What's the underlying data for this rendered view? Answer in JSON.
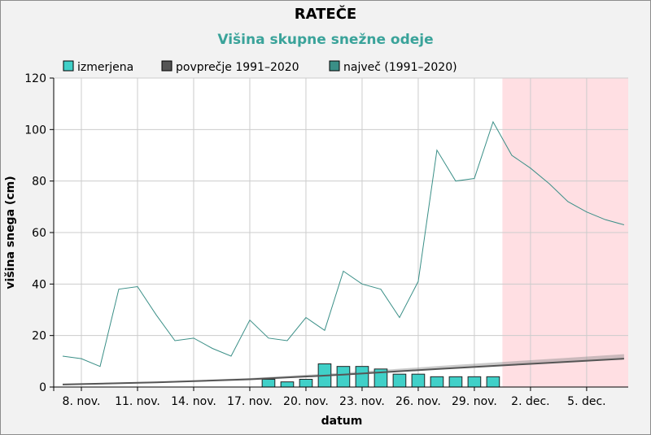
{
  "chart_data": {
    "type": "bar+line",
    "title": "RATEČE",
    "subtitle": "Višina skupne snežne odeje",
    "xlabel": "datum",
    "ylabel": "višina snega (cm)",
    "ylim": [
      0,
      120
    ],
    "yticks": [
      0,
      20,
      40,
      60,
      80,
      100,
      120
    ],
    "grid": true,
    "legend_position": "top-left",
    "xtick_labels": [
      "8. nov.",
      "11. nov.",
      "14. nov.",
      "17. nov.",
      "20. nov.",
      "23. nov.",
      "26. nov.",
      "29. nov.",
      "2. dec.",
      "5. dec."
    ],
    "x_range": [
      "2020-11-07",
      "2020-12-07"
    ],
    "forecast_region": {
      "start": "2020-12-01",
      "end": "2020-12-07"
    },
    "legend": [
      {
        "label": "izmerjena",
        "color": "#40d0c8"
      },
      {
        "label": "povprečje 1991–2020",
        "color": "#555555"
      },
      {
        "label": "največ (1991–2020)",
        "color": "#3a8f87"
      }
    ],
    "series": [
      {
        "name": "izmerjena",
        "kind": "bar",
        "color": "#40d0c8",
        "x": [
          "2020-11-18",
          "2020-11-19",
          "2020-11-20",
          "2020-11-21",
          "2020-11-22",
          "2020-11-23",
          "2020-11-24",
          "2020-11-25",
          "2020-11-26",
          "2020-11-27",
          "2020-11-28",
          "2020-11-29",
          "2020-11-30"
        ],
        "values": [
          3,
          2,
          3,
          9,
          8,
          8,
          7,
          5,
          5,
          4,
          4,
          4,
          4
        ]
      },
      {
        "name": "povprečje 1991–2020",
        "kind": "line",
        "color": "#555555",
        "x": [
          "2020-11-07",
          "2020-11-12",
          "2020-11-17",
          "2020-11-22",
          "2020-11-27",
          "2020-12-02",
          "2020-12-07"
        ],
        "values": [
          1,
          1.8,
          3,
          4.8,
          7,
          9,
          11
        ]
      },
      {
        "name": "največ (1991–2020)",
        "kind": "line",
        "color": "#3a8f87",
        "x": [
          "2020-11-07",
          "2020-11-08",
          "2020-11-09",
          "2020-11-10",
          "2020-11-11",
          "2020-11-12",
          "2020-11-13",
          "2020-11-14",
          "2020-11-15",
          "2020-11-16",
          "2020-11-17",
          "2020-11-18",
          "2020-11-19",
          "2020-11-20",
          "2020-11-21",
          "2020-11-22",
          "2020-11-23",
          "2020-11-24",
          "2020-11-25",
          "2020-11-26",
          "2020-11-27",
          "2020-11-28",
          "2020-11-29",
          "2020-11-30",
          "2020-12-01",
          "2020-12-02",
          "2020-12-03",
          "2020-12-04",
          "2020-12-05",
          "2020-12-06",
          "2020-12-07"
        ],
        "values": [
          12,
          11,
          8,
          38,
          39,
          28,
          18,
          19,
          15,
          12,
          26,
          19,
          18,
          27,
          22,
          45,
          40,
          38,
          27,
          41,
          92,
          80,
          81,
          103,
          90,
          85,
          79,
          72,
          68,
          65,
          63
        ]
      }
    ]
  }
}
